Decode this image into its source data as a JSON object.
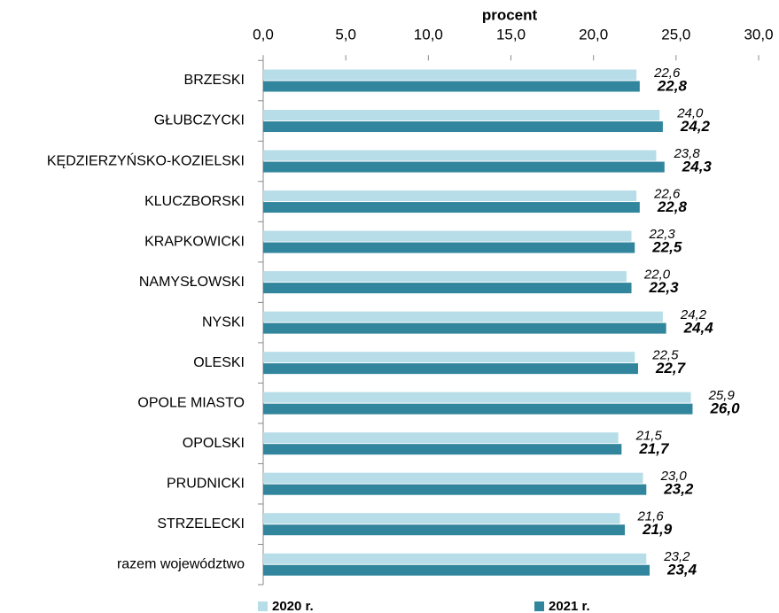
{
  "chart_data": {
    "type": "bar",
    "orientation": "horizontal",
    "title": "procent",
    "categories": [
      "BRZESKI",
      "GŁUBCZYCKI",
      "KĘDZIERZYŃSKO-KOZIELSKI",
      "KLUCZBORSKI",
      "KRAPKOWICKI",
      "NAMYSŁOWSKI",
      "NYSKI",
      "OLESKI",
      "OPOLE MIASTO",
      "OPOLSKI",
      "PRUDNICKI",
      "STRZELECKI",
      "razem województwo"
    ],
    "series": [
      {
        "name": "2020 r.",
        "color": "#b7dde8",
        "values": [
          22.6,
          24.0,
          23.8,
          22.6,
          22.3,
          22.0,
          24.2,
          22.5,
          25.9,
          21.5,
          23.0,
          21.6,
          23.2
        ],
        "value_labels": [
          "22,6",
          "24,0",
          "23,8",
          "22,6",
          "22,3",
          "22,0",
          "24,2",
          "22,5",
          "25,9",
          "21,5",
          "23,0",
          "21,6",
          "23,2"
        ]
      },
      {
        "name": "2021 r.",
        "color": "#31859c",
        "values": [
          22.8,
          24.2,
          24.3,
          22.8,
          22.5,
          22.3,
          24.4,
          22.7,
          26.0,
          21.7,
          23.2,
          21.9,
          23.4
        ],
        "value_labels": [
          "22,8",
          "24,2",
          "24,3",
          "22,8",
          "22,5",
          "22,3",
          "24,4",
          "22,7",
          "26,0",
          "21,7",
          "23,2",
          "21,9",
          "23,4"
        ]
      }
    ],
    "xlim": [
      0,
      30
    ],
    "xticks": [
      {
        "value": 0,
        "label": "0,0"
      },
      {
        "value": 5,
        "label": "5,0"
      },
      {
        "value": 10,
        "label": "10,0"
      },
      {
        "value": 15,
        "label": "15,0"
      },
      {
        "value": 20,
        "label": "20,0"
      },
      {
        "value": 25,
        "label": "25,0"
      },
      {
        "value": 30,
        "label": "30,0"
      }
    ],
    "legend": "bottom"
  }
}
